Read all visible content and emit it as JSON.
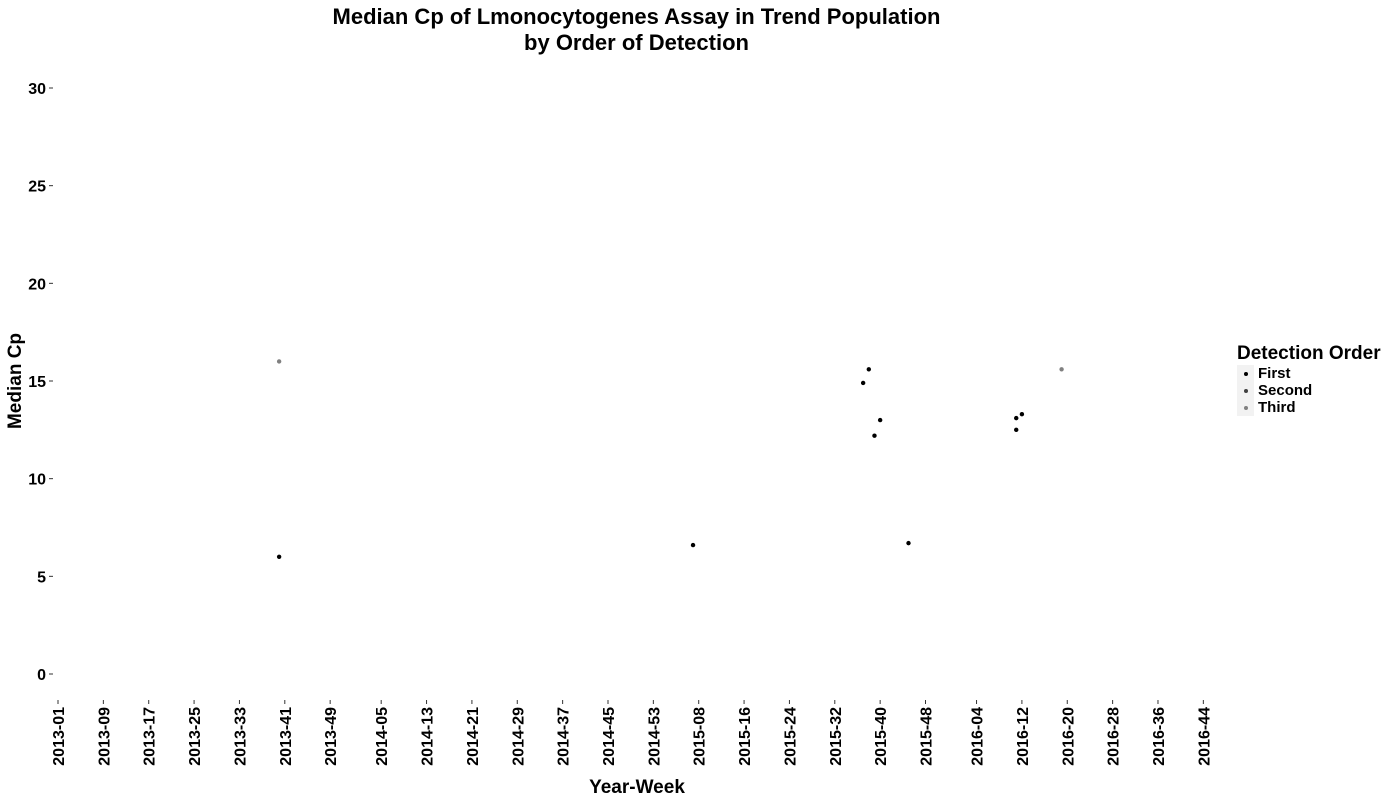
{
  "chart_data": {
    "type": "scatter",
    "title_line1": "Median Cp of Lmonocytogenes Assay in Trend Population",
    "title_line2": "by Order of Detection",
    "xlabel": "Year-Week",
    "ylabel": "Median Cp",
    "x_categories": [
      "2013-01",
      "2013-09",
      "2013-17",
      "2013-25",
      "2013-33",
      "2013-41",
      "2013-49",
      "2014-05",
      "2014-13",
      "2014-21",
      "2014-29",
      "2014-37",
      "2014-45",
      "2014-53",
      "2015-08",
      "2015-16",
      "2015-24",
      "2015-32",
      "2015-40",
      "2015-48",
      "2016-04",
      "2016-12",
      "2016-20",
      "2016-28",
      "2016-36",
      "2016-44"
    ],
    "ylim": [
      0,
      30
    ],
    "y_ticks": [
      "0",
      "5",
      "10",
      "15",
      "20",
      "25",
      "30"
    ],
    "grid": false,
    "legend": {
      "title": "Detection Order",
      "placement": "right",
      "entries": [
        {
          "label": "First",
          "color": "#000000"
        },
        {
          "label": "Second",
          "color": "#404040"
        },
        {
          "label": "Third",
          "color": "#808080"
        }
      ]
    },
    "series": [
      {
        "name": "First",
        "color": "#000000",
        "points": [
          {
            "x": "2013-40",
            "y": 6.0
          },
          {
            "x": "2015-07",
            "y": 6.6
          },
          {
            "x": "2015-37",
            "y": 14.9
          },
          {
            "x": "2015-38",
            "y": 15.6
          },
          {
            "x": "2015-39",
            "y": 12.2
          },
          {
            "x": "2015-40",
            "y": 13.0
          },
          {
            "x": "2015-45",
            "y": 6.7
          },
          {
            "x": "2016-11",
            "y": 12.5
          },
          {
            "x": "2016-11",
            "y": 13.1
          },
          {
            "x": "2016-12",
            "y": 13.3
          }
        ]
      },
      {
        "name": "Second",
        "color": "#404040",
        "points": []
      },
      {
        "name": "Third",
        "color": "#808080",
        "points": [
          {
            "x": "2013-40",
            "y": 16.0
          },
          {
            "x": "2016-19",
            "y": 15.6
          }
        ]
      }
    ]
  }
}
